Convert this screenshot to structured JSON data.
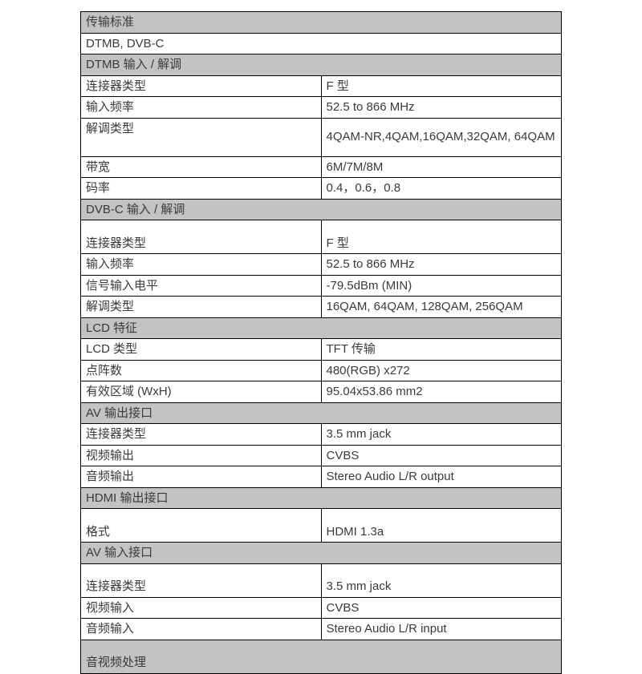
{
  "table": {
    "border_color": "#000000",
    "header_bg": "#c3c3c3",
    "text_color": "#3a3a3a",
    "font_size": 15,
    "sections": [
      {
        "type": "header",
        "label": "传输标准"
      },
      {
        "type": "fullrow",
        "value": "DTMB, DVB-C"
      },
      {
        "type": "header",
        "label": "DTMB 输入 / 解调"
      },
      {
        "type": "kv",
        "label": "连接器类型",
        "value": "F 型"
      },
      {
        "type": "kv",
        "label": "输入频率",
        "value": "52.5 to 866 MHz"
      },
      {
        "type": "kv-multi",
        "label": "解调类型",
        "value": "4QAM-NR,4QAM,16QAM,32QAM, 64QAM"
      },
      {
        "type": "kv",
        "label": "带宽",
        "value": "6M/7M/8M"
      },
      {
        "type": "kv",
        "label": "码率",
        "value": "0.4，0.6，0.8"
      },
      {
        "type": "header",
        "label": "DVB-C 输入 / 解调"
      },
      {
        "type": "kv-tall",
        "label": "连接器类型",
        "value": "F 型"
      },
      {
        "type": "kv",
        "label": "输入频率",
        "value": "52.5 to 866 MHz"
      },
      {
        "type": "kv",
        "label": "信号输入电平",
        "value": "-79.5dBm (MIN)"
      },
      {
        "type": "kv",
        "label": "解调类型",
        "value": "16QAM, 64QAM, 128QAM, 256QAM"
      },
      {
        "type": "header",
        "label": "LCD 特征"
      },
      {
        "type": "kv",
        "label": "LCD 类型",
        "value": "TFT 传输"
      },
      {
        "type": "kv",
        "label": "点阵数",
        "value": "480(RGB) x272"
      },
      {
        "type": "kv",
        "label": "有效区域 (WxH)",
        "value": "95.04x53.86 mm2"
      },
      {
        "type": "header",
        "label": "AV 输出接口"
      },
      {
        "type": "kv",
        "label": "连接器类型",
        "value": "3.5 mm jack"
      },
      {
        "type": "kv",
        "label": "视频输出",
        "value": "CVBS"
      },
      {
        "type": "kv",
        "label": "音频输出",
        "value": "Stereo Audio L/R output"
      },
      {
        "type": "header",
        "label": "HDMI 输出接口"
      },
      {
        "type": "kv-tall",
        "label": "格式",
        "value": "HDMI 1.3a"
      },
      {
        "type": "header",
        "label": "AV 输入接口"
      },
      {
        "type": "kv-tall",
        "label": "连接器类型",
        "value": "3.5 mm jack"
      },
      {
        "type": "kv",
        "label": "视频输入",
        "value": "CVBS"
      },
      {
        "type": "kv",
        "label": "音频输入",
        "value": "Stereo Audio L/R input"
      },
      {
        "type": "header-tall",
        "label": "音视频处理"
      }
    ]
  }
}
